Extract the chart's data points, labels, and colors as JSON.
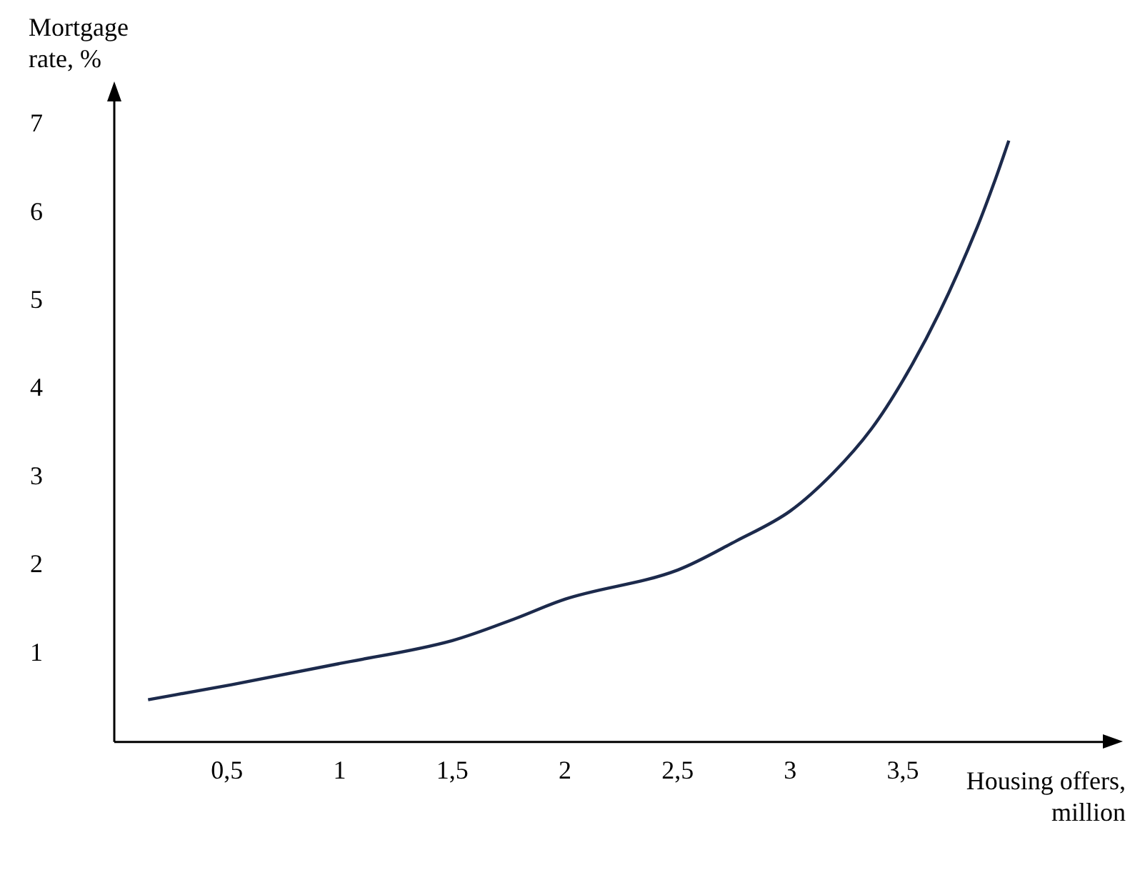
{
  "chart_data": {
    "type": "line",
    "xlabel": "Housing offers, million",
    "ylabel": "Mortgage rate, %",
    "x": [
      0.15,
      0.52,
      1.0,
      1.5,
      1.78,
      2.0,
      2.5,
      2.76,
      3.0,
      3.19,
      3.36,
      3.5,
      3.66,
      3.83,
      3.91,
      3.97
    ],
    "series": [
      {
        "color": "#1c2a4c",
        "values": [
          0.48,
          0.65,
          0.89,
          1.15,
          1.4,
          1.62,
          1.95,
          2.28,
          2.62,
          3.05,
          3.55,
          4.1,
          4.86,
          5.84,
          6.38,
          6.82
        ]
      }
    ],
    "xlim": [
      0,
      4.4
    ],
    "ylim": [
      0,
      7.3
    ],
    "xticks": [
      {
        "value": 0.5,
        "label": "0,5"
      },
      1,
      {
        "value": 1.5,
        "label": "1,5"
      },
      2,
      {
        "value": 2.5,
        "label": "2,5"
      },
      3,
      {
        "value": 3.5,
        "label": "3,5"
      }
    ],
    "yticks": [
      1,
      2,
      3,
      4,
      5,
      6,
      7
    ],
    "grid": false,
    "legend": false,
    "marker": "none",
    "line_style": "solid"
  }
}
